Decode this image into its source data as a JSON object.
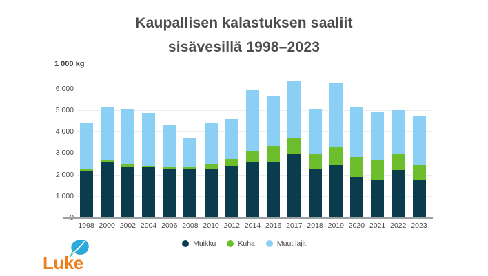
{
  "title": {
    "line1": "Kaupallisen kalastuksen saaliit",
    "line2": "sisävesillä 1998–2023"
  },
  "y_axis": {
    "unit": "1 000 kg",
    "tick_values": [
      6000,
      5000,
      4000,
      3000,
      2000,
      1000,
      0
    ],
    "tick_labels": [
      "6 000",
      "5 000",
      "4 000",
      "3 000",
      "2 000",
      "1 000",
      "0"
    ]
  },
  "legend": [
    {
      "label": "Muikku",
      "color": "#0b3c4d"
    },
    {
      "label": "Kuha",
      "color": "#6dbe2c"
    },
    {
      "label": "Muut lajit",
      "color": "#8ccff5"
    }
  ],
  "logo": {
    "text": "Luke",
    "text_color": "#ee7f1d",
    "leaf_color": "#2aa9dc"
  },
  "chart_data": {
    "type": "bar",
    "stacked": true,
    "title": "Kaupallisen kalastuksen saaliit sisävesillä 1998–2023",
    "ylabel": "1 000 kg",
    "ylim": [
      0,
      6600
    ],
    "grid": true,
    "legend_position": "bottom",
    "categories": [
      "1998",
      "2000",
      "2002",
      "2004",
      "2006",
      "2008",
      "2010",
      "2012",
      "2014",
      "2016",
      "2017",
      "2018",
      "2019",
      "2020",
      "2021",
      "2022",
      "2023"
    ],
    "series": [
      {
        "name": "Muikku",
        "color": "#0b3c4d",
        "values": [
          2170,
          2580,
          2390,
          2330,
          2260,
          2270,
          2270,
          2420,
          2600,
          2600,
          2960,
          2250,
          2440,
          1910,
          1770,
          2220,
          1770
        ]
      },
      {
        "name": "Kuha",
        "color": "#6dbe2c",
        "values": [
          110,
          130,
          110,
          90,
          110,
          80,
          210,
          320,
          470,
          740,
          730,
          690,
          860,
          920,
          940,
          740,
          680
        ]
      },
      {
        "name": "Muut lajit",
        "color": "#8ccff5",
        "values": [
          2120,
          2450,
          2580,
          2470,
          1930,
          1380,
          1920,
          1860,
          2880,
          2300,
          2660,
          2110,
          2950,
          2300,
          2240,
          2040,
          2300
        ]
      }
    ],
    "totals": [
      4400,
      5160,
      5080,
      4890,
      4300,
      3730,
      4400,
      4600,
      5950,
      5640,
      6350,
      5050,
      6250,
      5130,
      4950,
      5000,
      4750
    ]
  }
}
